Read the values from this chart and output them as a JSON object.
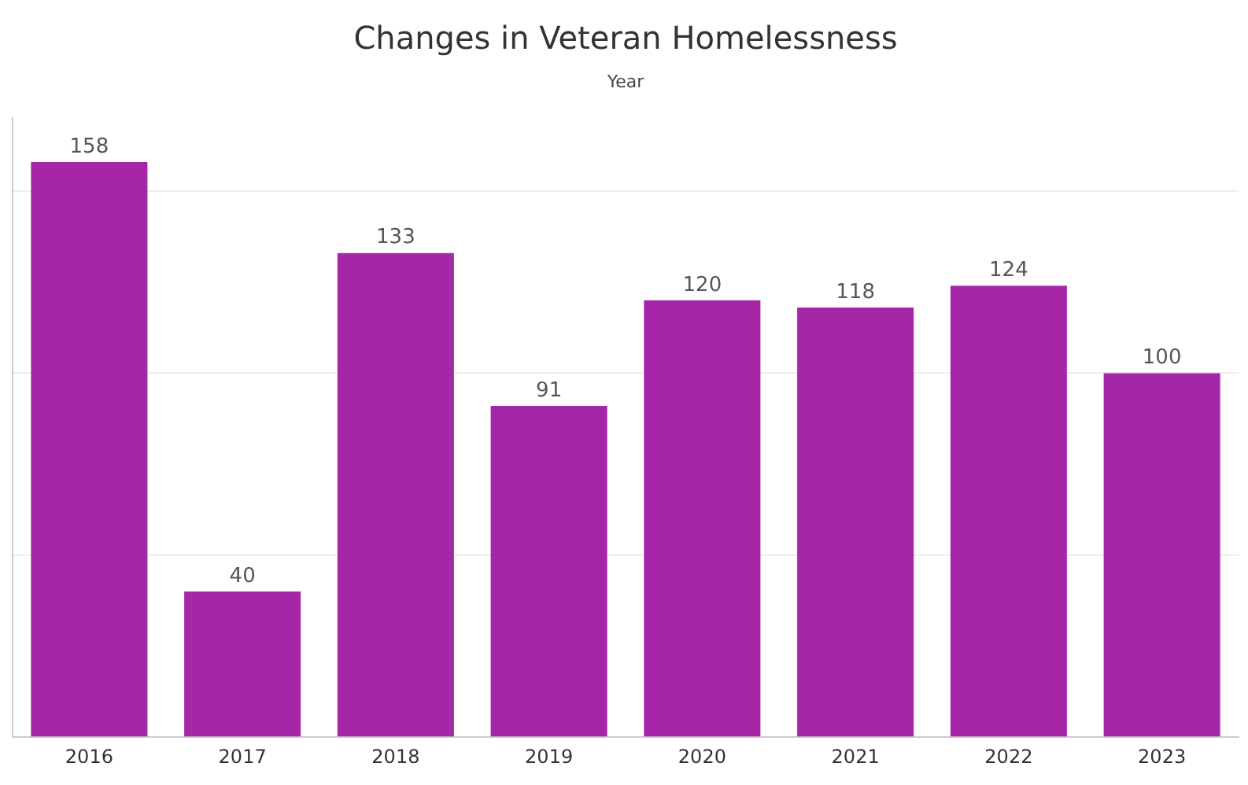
{
  "chart_data": {
    "type": "bar",
    "title": "Changes in Veteran Homelessness",
    "xlabel": "Year",
    "categories": [
      "2016",
      "2017",
      "2018",
      "2019",
      "2020",
      "2021",
      "2022",
      "2023"
    ],
    "values": [
      158,
      40,
      133,
      91,
      120,
      118,
      124,
      100
    ],
    "color": "#a626a8",
    "ylim": [
      0,
      170
    ],
    "yticks": [
      {
        "value": 0,
        "label": null
      },
      {
        "value": 50,
        "label": null
      },
      {
        "value": 100,
        "label": null
      },
      {
        "value": 150,
        "label": null
      }
    ],
    "grid": "y",
    "tick_labels": "x",
    "data_labels": true,
    "legend": false
  }
}
